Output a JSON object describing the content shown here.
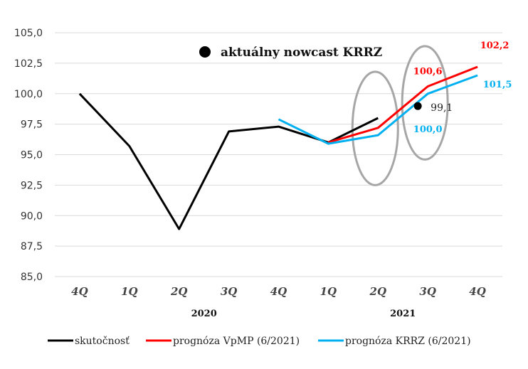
{
  "chart_data": {
    "type": "line",
    "categories": [
      "4Q",
      "1Q",
      "2Q",
      "3Q",
      "4Q",
      "1Q",
      "2Q",
      "3Q",
      "4Q"
    ],
    "year_labels": [
      {
        "label": "2020",
        "span": [
          1,
          4
        ]
      },
      {
        "label": "2021",
        "span": [
          5,
          8
        ]
      }
    ],
    "ylim": [
      85.0,
      105.0
    ],
    "yticks": [
      "85,0",
      "87,5",
      "90,0",
      "92,5",
      "95,0",
      "97,5",
      "100,0",
      "102,5",
      "105,0"
    ],
    "ytick_values": [
      85.0,
      87.5,
      90.0,
      92.5,
      95.0,
      97.5,
      100.0,
      102.5,
      105.0
    ],
    "grid": true,
    "legend_position": "bottom",
    "series": [
      {
        "name": "skutočnosť",
        "color": "#000000",
        "values": [
          100.0,
          95.7,
          88.9,
          96.9,
          97.3,
          96.0,
          98.0,
          null,
          null
        ]
      },
      {
        "name": "prognóza VpMP (6/2021)",
        "color": "#ff0000",
        "values": [
          null,
          null,
          null,
          null,
          null,
          96.0,
          97.2,
          100.6,
          102.2
        ]
      },
      {
        "name": "prognóza KRRZ (6/2021)",
        "color": "#00b0f0",
        "values": [
          null,
          null,
          null,
          null,
          97.9,
          95.9,
          96.6,
          100.0,
          101.5
        ]
      }
    ],
    "nowcast": {
      "label": "aktuálny nowcast KRRZ",
      "x": 7,
      "value": 99.1,
      "value_label": "99,1"
    },
    "data_labels": [
      {
        "series": 1,
        "index": 7,
        "text": "100,6"
      },
      {
        "series": 1,
        "index": 8,
        "text": "102,2"
      },
      {
        "series": 2,
        "index": 7,
        "text": "100,0"
      },
      {
        "series": 2,
        "index": 8,
        "text": "101,5"
      }
    ],
    "highlights": [
      {
        "x": 6,
        "ymin": 92.5,
        "ymax": 101.8
      },
      {
        "x": 7,
        "ymin": 94.6,
        "ymax": 103.9
      }
    ]
  }
}
